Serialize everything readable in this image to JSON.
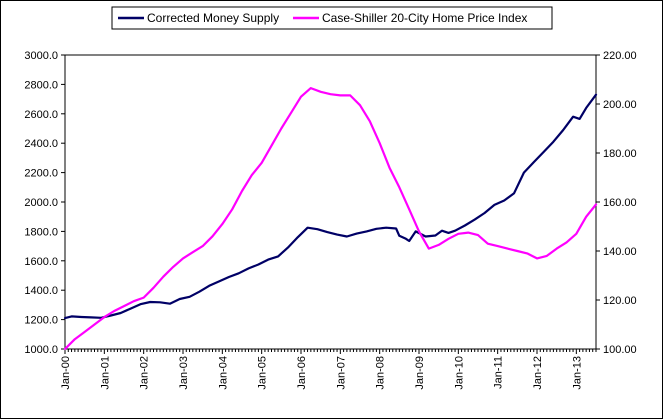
{
  "chart_data": {
    "type": "line",
    "title": "",
    "xlabel": "",
    "ylabel": "",
    "y2label": "",
    "legend_position": "top",
    "grid": false,
    "x_ticks": [
      "Jan-00",
      "Jan-01",
      "Jan-02",
      "Jan-03",
      "Jan-04",
      "Jan-05",
      "Jan-06",
      "Jan-07",
      "Jan-08",
      "Jan-09",
      "Jan-10",
      "Jan-11",
      "Jan-12",
      "Jan-13"
    ],
    "x_range": [
      "2000-01",
      "2013-07"
    ],
    "y_left": {
      "range": [
        1000,
        3000
      ],
      "ticks": [
        1000,
        1200,
        1400,
        1600,
        1800,
        2000,
        2200,
        2400,
        2600,
        2800,
        3000
      ],
      "tick_labels": [
        "1000.0",
        "1200.0",
        "1400.0",
        "1600.0",
        "1800.0",
        "2000.0",
        "2200.0",
        "2400.0",
        "2600.0",
        "2800.0",
        "3000.0"
      ]
    },
    "y_right": {
      "range": [
        100,
        220
      ],
      "ticks": [
        100,
        120,
        140,
        160,
        180,
        200,
        220
      ],
      "tick_labels": [
        "100.00",
        "120.00",
        "140.00",
        "160.00",
        "180.00",
        "200.00",
        "220.00"
      ]
    },
    "series": [
      {
        "name": "Corrected Money Supply",
        "axis": "left",
        "color": "#000066",
        "points": [
          [
            "2000-01",
            1210
          ],
          [
            "2000-03",
            1222
          ],
          [
            "2000-06",
            1218
          ],
          [
            "2000-09",
            1215
          ],
          [
            "2000-12",
            1212
          ],
          [
            "2001-03",
            1228
          ],
          [
            "2001-06",
            1245
          ],
          [
            "2001-09",
            1275
          ],
          [
            "2001-12",
            1305
          ],
          [
            "2002-03",
            1320
          ],
          [
            "2002-06",
            1318
          ],
          [
            "2002-09",
            1308
          ],
          [
            "2002-12",
            1340
          ],
          [
            "2003-03",
            1355
          ],
          [
            "2003-06",
            1390
          ],
          [
            "2003-09",
            1430
          ],
          [
            "2003-12",
            1460
          ],
          [
            "2004-03",
            1490
          ],
          [
            "2004-06",
            1515
          ],
          [
            "2004-09",
            1548
          ],
          [
            "2004-12",
            1575
          ],
          [
            "2005-03",
            1608
          ],
          [
            "2005-06",
            1630
          ],
          [
            "2005-09",
            1690
          ],
          [
            "2005-12",
            1760
          ],
          [
            "2006-03",
            1825
          ],
          [
            "2006-06",
            1815
          ],
          [
            "2006-09",
            1795
          ],
          [
            "2006-12",
            1778
          ],
          [
            "2007-03",
            1765
          ],
          [
            "2007-06",
            1785
          ],
          [
            "2007-09",
            1800
          ],
          [
            "2007-12",
            1818
          ],
          [
            "2008-03",
            1825
          ],
          [
            "2008-06",
            1820
          ],
          [
            "2008-07",
            1770
          ],
          [
            "2008-09",
            1750
          ],
          [
            "2008-10",
            1735
          ],
          [
            "2008-12",
            1800
          ],
          [
            "2009-03",
            1765
          ],
          [
            "2009-06",
            1772
          ],
          [
            "2009-08",
            1805
          ],
          [
            "2009-10",
            1790
          ],
          [
            "2009-12",
            1805
          ],
          [
            "2010-03",
            1840
          ],
          [
            "2010-06",
            1880
          ],
          [
            "2010-09",
            1925
          ],
          [
            "2010-12",
            1980
          ],
          [
            "2011-03",
            2010
          ],
          [
            "2011-06",
            2060
          ],
          [
            "2011-09",
            2200
          ],
          [
            "2011-12",
            2270
          ],
          [
            "2012-03",
            2340
          ],
          [
            "2012-06",
            2410
          ],
          [
            "2012-09",
            2490
          ],
          [
            "2012-12",
            2580
          ],
          [
            "2013-02",
            2565
          ],
          [
            "2013-04",
            2640
          ],
          [
            "2013-07",
            2730
          ]
        ]
      },
      {
        "name": "Case-Shiller 20-City Home Price Index",
        "axis": "right",
        "color": "#ff00ff",
        "points": [
          [
            "2000-01",
            100.0
          ],
          [
            "2000-04",
            104.0
          ],
          [
            "2000-07",
            107.0
          ],
          [
            "2000-10",
            110.0
          ],
          [
            "2001-01",
            113.0
          ],
          [
            "2001-04",
            115.5
          ],
          [
            "2001-07",
            117.5
          ],
          [
            "2001-10",
            119.5
          ],
          [
            "2002-01",
            121.0
          ],
          [
            "2002-04",
            125.0
          ],
          [
            "2002-07",
            129.5
          ],
          [
            "2002-10",
            133.5
          ],
          [
            "2003-01",
            137.0
          ],
          [
            "2003-04",
            139.5
          ],
          [
            "2003-07",
            142.0
          ],
          [
            "2003-10",
            146.0
          ],
          [
            "2004-01",
            151.0
          ],
          [
            "2004-04",
            157.0
          ],
          [
            "2004-07",
            164.5
          ],
          [
            "2004-10",
            171.0
          ],
          [
            "2005-01",
            176.0
          ],
          [
            "2005-04",
            183.0
          ],
          [
            "2005-07",
            190.0
          ],
          [
            "2005-10",
            196.5
          ],
          [
            "2006-01",
            203.0
          ],
          [
            "2006-04",
            206.5
          ],
          [
            "2006-07",
            205.0
          ],
          [
            "2006-10",
            204.0
          ],
          [
            "2007-01",
            203.5
          ],
          [
            "2007-04",
            203.5
          ],
          [
            "2007-07",
            199.5
          ],
          [
            "2007-10",
            193.0
          ],
          [
            "2008-01",
            184.0
          ],
          [
            "2008-04",
            174.0
          ],
          [
            "2008-07",
            166.0
          ],
          [
            "2008-10",
            157.0
          ],
          [
            "2009-01",
            148.0
          ],
          [
            "2009-04",
            141.0
          ],
          [
            "2009-07",
            142.5
          ],
          [
            "2009-10",
            145.0
          ],
          [
            "2010-01",
            147.0
          ],
          [
            "2010-04",
            147.5
          ],
          [
            "2010-07",
            146.5
          ],
          [
            "2010-10",
            143.0
          ],
          [
            "2011-01",
            142.0
          ],
          [
            "2011-04",
            141.0
          ],
          [
            "2011-07",
            140.0
          ],
          [
            "2011-10",
            139.0
          ],
          [
            "2012-01",
            137.0
          ],
          [
            "2012-04",
            138.0
          ],
          [
            "2012-07",
            141.0
          ],
          [
            "2012-10",
            143.5
          ],
          [
            "2013-01",
            147.0
          ],
          [
            "2013-04",
            154.0
          ],
          [
            "2013-07",
            159.0
          ]
        ]
      }
    ]
  }
}
